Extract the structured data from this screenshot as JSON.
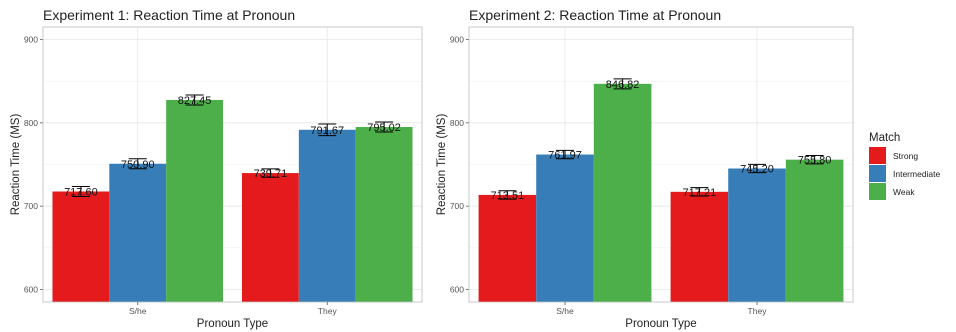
{
  "chart_data": [
    {
      "type": "bar",
      "title": "Experiment 1: Reaction Time at Pronoun",
      "xlabel": "Pronoun Type",
      "ylabel": "Reaction Time (MS)",
      "categories": [
        "S/he",
        "They"
      ],
      "ylim": [
        585,
        915
      ],
      "yticks": [
        "600",
        "700",
        "800",
        "900"
      ],
      "error_bars": true,
      "grid": true,
      "series": [
        {
          "name": "Strong",
          "values": [
            717.6,
            739.71
          ],
          "labels": [
            "717.60",
            "739.71"
          ],
          "errors": [
            6,
            5
          ]
        },
        {
          "name": "Intermediate",
          "values": [
            750.9,
            791.67
          ],
          "labels": [
            "750.90",
            "791.67"
          ],
          "errors": [
            6,
            7
          ]
        },
        {
          "name": "Weak",
          "values": [
            827.45,
            795.02
          ],
          "labels": [
            "827.45",
            "795.02"
          ],
          "errors": [
            6,
            6
          ]
        }
      ]
    },
    {
      "type": "bar",
      "title": "Experiment 2: Reaction Time at Pronoun",
      "xlabel": "Pronoun Type",
      "ylabel": "Reaction Time (MS)",
      "categories": [
        "S/he",
        "They"
      ],
      "ylim": [
        585,
        915
      ],
      "yticks": [
        "600",
        "700",
        "800",
        "900"
      ],
      "error_bars": true,
      "grid": true,
      "series": [
        {
          "name": "Strong",
          "values": [
            713.51,
            717.21
          ],
          "labels": [
            "713.51",
            "717.21"
          ],
          "errors": [
            5,
            5
          ]
        },
        {
          "name": "Intermediate",
          "values": [
            761.97,
            745.2
          ],
          "labels": [
            "761.97",
            "745.20"
          ],
          "errors": [
            5,
            5
          ]
        },
        {
          "name": "Weak",
          "values": [
            846.82,
            755.8
          ],
          "labels": [
            "846.82",
            "755.80"
          ],
          "errors": [
            6,
            5
          ]
        }
      ]
    }
  ],
  "legend": {
    "title": "Match",
    "placement": "right",
    "items": [
      {
        "label": "Strong",
        "color": "#e41a1c"
      },
      {
        "label": "Intermediate",
        "color": "#377eb8"
      },
      {
        "label": "Weak",
        "color": "#4daf4a"
      }
    ]
  }
}
